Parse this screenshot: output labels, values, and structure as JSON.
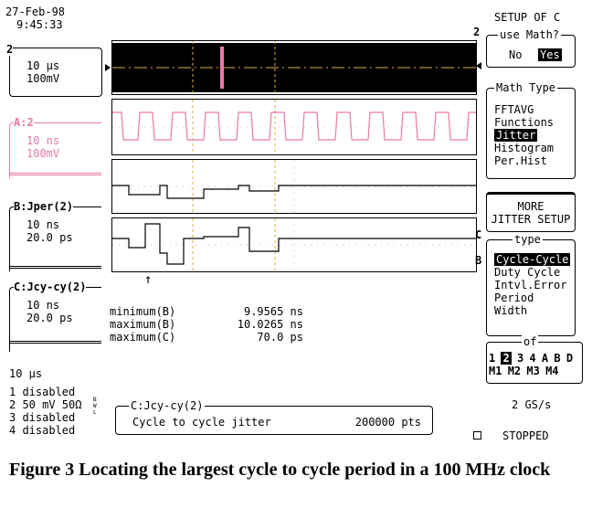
{
  "header": {
    "date": "27-Feb-98",
    "time": "9:45:33"
  },
  "channels": {
    "ch2": {
      "num": "2",
      "timebase": "10 µs",
      "volts": "100mV"
    },
    "A": {
      "label": "A:2",
      "timebase": "10 ns",
      "volts": "100mV"
    },
    "B": {
      "label": "B:Jper(2)",
      "timebase": "10 ns",
      "volts": "20.0 ps"
    },
    "C": {
      "label": "C:Jcy-cy(2)",
      "timebase": "10 ns",
      "volts": "20.0 ps"
    }
  },
  "measurements": [
    {
      "label": "minimum(B)",
      "value": "9.9565 ns"
    },
    {
      "label": "maximum(B)",
      "value": "10.0265 ns"
    },
    {
      "label": "maximum(C)",
      "value": "70.0 ps"
    }
  ],
  "bottom_status": {
    "timebase": "10 µs",
    "lines": [
      "1 disabled",
      "2 50 mV 50Ω",
      "3 disabled",
      "4 disabled"
    ],
    "bw": "BWL",
    "info_title": "C:Jcy-cy(2)",
    "info_text": "Cycle to cycle jitter",
    "info_pts": "200000 pts",
    "sample_rate": "2 GS/s",
    "state": "STOPPED"
  },
  "menu": {
    "title": "SETUP OF C",
    "use_math": {
      "label": "use Math?",
      "no": "No",
      "yes": "Yes"
    },
    "math_type": {
      "label": "Math Type",
      "items": [
        "FFTAVG",
        "Functions",
        "Jitter",
        "Histogram",
        "Per.Hist"
      ],
      "selected": "Jitter"
    },
    "more": {
      "line1": "MORE",
      "line2": "JITTER SETUP"
    },
    "type": {
      "label": "type",
      "items": [
        "Cycle-Cycle",
        "Duty Cycle",
        "Intvl.Error",
        "Period",
        "Width"
      ],
      "selected": "Cycle-Cycle"
    },
    "of": {
      "label": "of",
      "row1": [
        "1",
        "2",
        "3",
        "4",
        "A",
        "B",
        "D"
      ],
      "row2": [
        "M1",
        "M2",
        "M3",
        "M4"
      ],
      "selected": "2"
    }
  },
  "trace_markers": {
    "top": "2",
    "c": "C",
    "b": "B"
  },
  "caption": "Figure 3   Locating the largest cycle to cycle period in a 100 MHz clock"
}
